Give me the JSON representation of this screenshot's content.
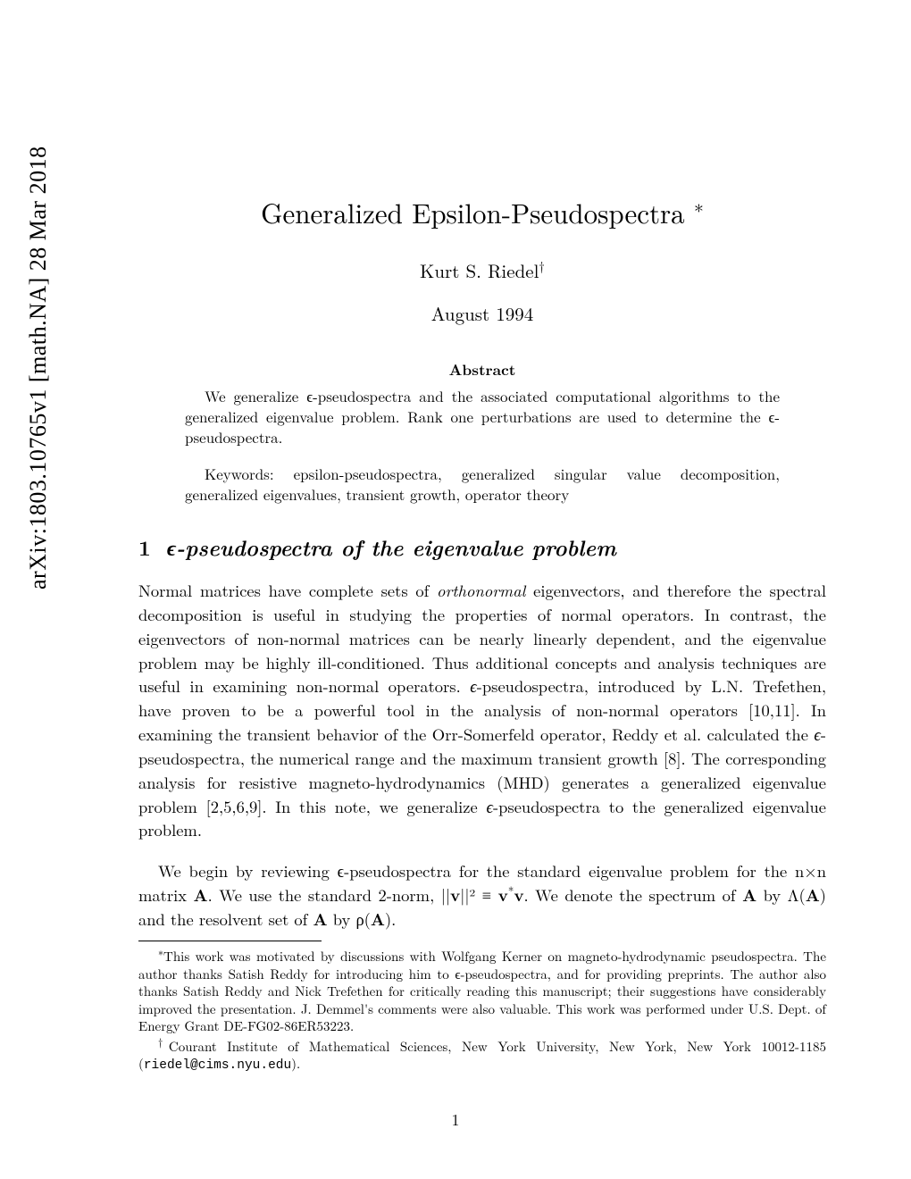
{
  "arxiv": {
    "id": "arXiv:1803.10765v1 [math.NA] 28 Mar 2018"
  },
  "title": {
    "text": "Generalized Epsilon-Pseudospectra ",
    "marker": "∗"
  },
  "author": {
    "name": "Kurt S. Riedel",
    "marker": "†"
  },
  "date": "August 1994",
  "abstract": {
    "heading": "Abstract",
    "body_part1": "We generalize ϵ-pseudospectra and the associated computational algorithms to the generalized eigenvalue problem. Rank one perturbations are used to determine the ϵ-pseudospectra."
  },
  "keywords": "Keywords: epsilon-pseudospectra, generalized singular value decomposition, generalized eigenvalues, transient growth, operator theory",
  "section": {
    "number": "1",
    "title": "ϵ-pseudospectra of the eigenvalue problem"
  },
  "para1": "Normal matrices have complete sets of orthonormal eigenvectors, and therefore the spectral decomposition is useful in studying the properties of normal operators. In contrast, the eigenvectors of non-normal matrices can be nearly linearly dependent, and the eigenvalue problem may be highly ill-conditioned. Thus additional concepts and analysis techniques are useful in examining non-normal operators. ϵ-pseudospectra, introduced by L.N. Trefethen, have proven to be a powerful tool in the analysis of non-normal operators [10,11]. In examining the transient behavior of the Orr-Somerfeld operator, Reddy et al. calculated the ϵ-pseudospectra, the numerical range and the maximum transient growth [8]. The corresponding analysis for resistive magneto-hydrodynamics (MHD) generates a generalized eigenvalue problem [2,5,6,9]. In this note, we generalize ϵ-pseudospectra to the generalized eigenvalue problem.",
  "para2_a": "We begin by reviewing ϵ-pseudospectra for the standard eigenvalue problem for the n×n matrix ",
  "para2_b": ". We use the standard 2-norm, ||",
  "para2_c": "||² ≡ ",
  "para2_d": ". We denote the spectrum of ",
  "para2_e": " by Λ(",
  "para2_f": ") and the resolvent set of ",
  "para2_g": " by ρ(",
  "para2_h": ").",
  "bold_A": "A",
  "bold_v": "v",
  "bold_vstar_v": "v*v",
  "footnote1": {
    "marker": "∗",
    "text": "This work was motivated by discussions with Wolfgang Kerner on magneto-hydrodynamic pseudospectra. The author thanks Satish Reddy for introducing him to ϵ-pseudospectra, and for providing preprints. The author also thanks Satish Reddy and Nick Trefethen for critically reading this manuscript; their suggestions have considerably improved the presentation. J. Demmel's comments were also valuable. This work was performed under U.S. Dept. of Energy Grant DE-FG02-86ER53223."
  },
  "footnote2": {
    "marker": "†",
    "text_a": "Courant Institute of Mathematical Sciences, New York University, New York, New York 10012-1185 (",
    "email": "riedel@cims.nyu.edu",
    "text_b": ")."
  },
  "page_number": "1"
}
